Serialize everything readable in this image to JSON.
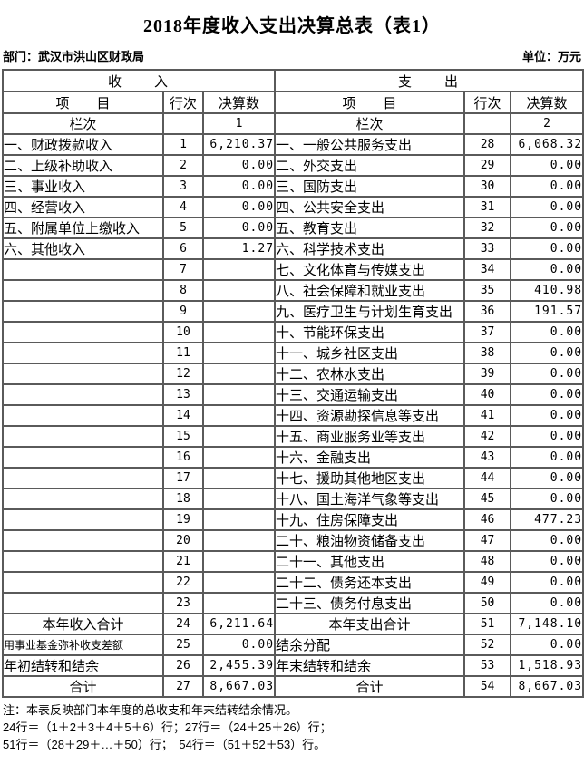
{
  "page": {
    "title": "2018年度收入支出决算总表（表1）",
    "department": "部门：武汉市洪山区财政局",
    "unit": "单位：万元"
  },
  "table": {
    "income_header": "收　　入",
    "expense_header": "支　　出",
    "col_item": "项　　目",
    "col_row_no": "行次",
    "col_amount": "决算数",
    "lanci_label": "栏次",
    "income_col_no": "1",
    "expense_col_no": "2",
    "rows": [
      {
        "in_item": "一、财政拨款收入",
        "in_no": "1",
        "in_amt": "6,210.37",
        "in_style": "normal",
        "ex_item": "一、一般公共服务支出",
        "ex_no": "28",
        "ex_amt": "6,068.32",
        "ex_style": "normal"
      },
      {
        "in_item": "二、上级补助收入",
        "in_no": "2",
        "in_amt": "0.00",
        "in_style": "normal",
        "ex_item": "二、外交支出",
        "ex_no": "29",
        "ex_amt": "0.00",
        "ex_style": "normal"
      },
      {
        "in_item": "三、事业收入",
        "in_no": "3",
        "in_amt": "0.00",
        "in_style": "normal",
        "ex_item": "三、国防支出",
        "ex_no": "30",
        "ex_amt": "0.00",
        "ex_style": "normal"
      },
      {
        "in_item": "四、经营收入",
        "in_no": "4",
        "in_amt": "0.00",
        "in_style": "normal",
        "ex_item": "四、公共安全支出",
        "ex_no": "31",
        "ex_amt": "0.00",
        "ex_style": "normal"
      },
      {
        "in_item": "五、附属单位上缴收入",
        "in_no": "5",
        "in_amt": "0.00",
        "in_style": "normal",
        "ex_item": "五、教育支出",
        "ex_no": "32",
        "ex_amt": "0.00",
        "ex_style": "normal"
      },
      {
        "in_item": "六、其他收入",
        "in_no": "6",
        "in_amt": "1.27",
        "in_style": "normal",
        "ex_item": "六、科学技术支出",
        "ex_no": "33",
        "ex_amt": "0.00",
        "ex_style": "normal"
      },
      {
        "in_item": "",
        "in_no": "7",
        "in_amt": "",
        "in_style": "normal",
        "ex_item": "七、文化体育与传媒支出",
        "ex_no": "34",
        "ex_amt": "0.00",
        "ex_style": "normal"
      },
      {
        "in_item": "",
        "in_no": "8",
        "in_amt": "",
        "in_style": "normal",
        "ex_item": "八、社会保障和就业支出",
        "ex_no": "35",
        "ex_amt": "410.98",
        "ex_style": "normal"
      },
      {
        "in_item": "",
        "in_no": "9",
        "in_amt": "",
        "in_style": "normal",
        "ex_item": "九、医疗卫生与计划生育支出",
        "ex_no": "36",
        "ex_amt": "191.57",
        "ex_style": "normal"
      },
      {
        "in_item": "",
        "in_no": "10",
        "in_amt": "",
        "in_style": "normal",
        "ex_item": "十、节能环保支出",
        "ex_no": "37",
        "ex_amt": "0.00",
        "ex_style": "normal"
      },
      {
        "in_item": "",
        "in_no": "11",
        "in_amt": "",
        "in_style": "normal",
        "ex_item": "十一、城乡社区支出",
        "ex_no": "38",
        "ex_amt": "0.00",
        "ex_style": "normal"
      },
      {
        "in_item": "",
        "in_no": "12",
        "in_amt": "",
        "in_style": "normal",
        "ex_item": "十二、农林水支出",
        "ex_no": "39",
        "ex_amt": "0.00",
        "ex_style": "normal"
      },
      {
        "in_item": "",
        "in_no": "13",
        "in_amt": "",
        "in_style": "normal",
        "ex_item": "十三、交通运输支出",
        "ex_no": "40",
        "ex_amt": "0.00",
        "ex_style": "normal"
      },
      {
        "in_item": "",
        "in_no": "14",
        "in_amt": "",
        "in_style": "normal",
        "ex_item": "十四、资源勘探信息等支出",
        "ex_no": "41",
        "ex_amt": "0.00",
        "ex_style": "normal"
      },
      {
        "in_item": "",
        "in_no": "15",
        "in_amt": "",
        "in_style": "normal",
        "ex_item": "十五、商业服务业等支出",
        "ex_no": "42",
        "ex_amt": "0.00",
        "ex_style": "normal"
      },
      {
        "in_item": "",
        "in_no": "16",
        "in_amt": "",
        "in_style": "normal",
        "ex_item": "十六、金融支出",
        "ex_no": "43",
        "ex_amt": "0.00",
        "ex_style": "normal"
      },
      {
        "in_item": "",
        "in_no": "17",
        "in_amt": "",
        "in_style": "normal",
        "ex_item": "十七、援助其他地区支出",
        "ex_no": "44",
        "ex_amt": "0.00",
        "ex_style": "normal"
      },
      {
        "in_item": "",
        "in_no": "18",
        "in_amt": "",
        "in_style": "normal",
        "ex_item": "十八、国土海洋气象等支出",
        "ex_no": "45",
        "ex_amt": "0.00",
        "ex_style": "normal"
      },
      {
        "in_item": "",
        "in_no": "19",
        "in_amt": "",
        "in_style": "normal",
        "ex_item": "十九、住房保障支出",
        "ex_no": "46",
        "ex_amt": "477.23",
        "ex_style": "normal"
      },
      {
        "in_item": "",
        "in_no": "20",
        "in_amt": "",
        "in_style": "normal",
        "ex_item": "二十、粮油物资储备支出",
        "ex_no": "47",
        "ex_amt": "0.00",
        "ex_style": "normal"
      },
      {
        "in_item": "",
        "in_no": "21",
        "in_amt": "",
        "in_style": "normal",
        "ex_item": "二十一、其他支出",
        "ex_no": "48",
        "ex_amt": "0.00",
        "ex_style": "normal"
      },
      {
        "in_item": "",
        "in_no": "22",
        "in_amt": "",
        "in_style": "normal",
        "ex_item": "二十二、债务还本支出",
        "ex_no": "49",
        "ex_amt": "0.00",
        "ex_style": "normal"
      },
      {
        "in_item": "",
        "in_no": "23",
        "in_amt": "",
        "in_style": "normal",
        "ex_item": "二十三、债务付息支出",
        "ex_no": "50",
        "ex_amt": "0.00",
        "ex_style": "normal"
      },
      {
        "in_item": "本年收入合计",
        "in_no": "24",
        "in_amt": "6,211.64",
        "in_style": "total",
        "ex_item": "本年支出合计",
        "ex_no": "51",
        "ex_amt": "7,148.10",
        "ex_style": "total"
      },
      {
        "in_item": "用事业基金弥补收支差额",
        "in_no": "25",
        "in_amt": "0.00",
        "in_style": "indent-small",
        "ex_item": "结余分配",
        "ex_no": "52",
        "ex_amt": "0.00",
        "ex_style": "indent"
      },
      {
        "in_item": "年初结转和结余",
        "in_no": "26",
        "in_amt": "2,455.39",
        "in_style": "indent",
        "ex_item": "年末结转和结余",
        "ex_no": "53",
        "ex_amt": "1,518.93",
        "ex_style": "indent"
      },
      {
        "in_item": "合计",
        "in_no": "27",
        "in_amt": "8,667.03",
        "in_style": "total",
        "ex_item": "合计",
        "ex_no": "54",
        "ex_amt": "8,667.03",
        "ex_style": "total"
      }
    ]
  },
  "notes": {
    "line1": "注：本表反映部门本年度的总收支和年末结转结余情况。",
    "line2": "24行＝（1＋2＋3＋4＋5＋6）行；27行＝（24＋25＋26）行；",
    "line3": "51行＝（28＋29＋…＋50）行；　54行＝（51＋52＋53）行。"
  }
}
